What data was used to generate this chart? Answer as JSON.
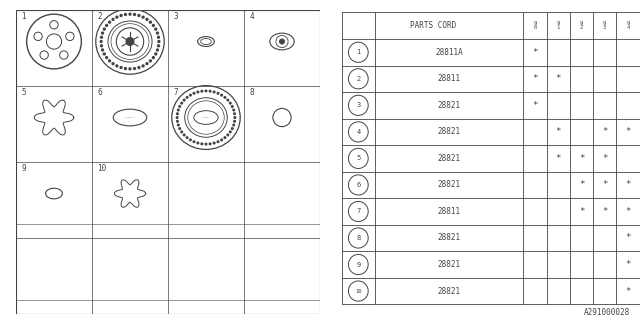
{
  "diagram_ref": "A291000028",
  "bg_color": "#ffffff",
  "line_color": "#444444",
  "table": {
    "rows": [
      {
        "num": 1,
        "part": "28811A",
        "cols": [
          "*",
          "",
          "",
          "",
          ""
        ]
      },
      {
        "num": 2,
        "part": "28811",
        "cols": [
          "*",
          "*",
          "",
          "",
          ""
        ]
      },
      {
        "num": 3,
        "part": "28821",
        "cols": [
          "*",
          "",
          "",
          "",
          ""
        ]
      },
      {
        "num": 4,
        "part": "28821",
        "cols": [
          "",
          "*",
          "",
          "*",
          "*"
        ]
      },
      {
        "num": 5,
        "part": "28821",
        "cols": [
          "",
          "*",
          "*",
          "*",
          ""
        ]
      },
      {
        "num": 6,
        "part": "28821",
        "cols": [
          "",
          "",
          "*",
          "*",
          "*"
        ]
      },
      {
        "num": 7,
        "part": "28811",
        "cols": [
          "",
          "",
          "*",
          "*",
          "*"
        ]
      },
      {
        "num": 8,
        "part": "28821",
        "cols": [
          "",
          "",
          "",
          "",
          "*"
        ]
      },
      {
        "num": 9,
        "part": "28821",
        "cols": [
          "",
          "",
          "",
          "",
          "*"
        ]
      },
      {
        "num": 10,
        "part": "28821",
        "cols": [
          "",
          "",
          "",
          "",
          "*"
        ]
      }
    ]
  }
}
